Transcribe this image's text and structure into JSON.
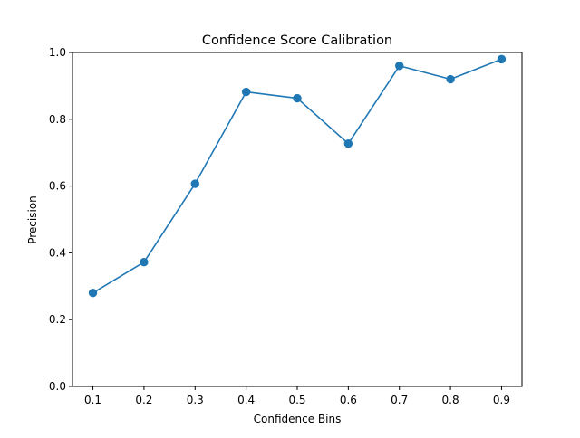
{
  "chart_data": {
    "type": "line",
    "title": "Confidence Score Calibration",
    "xlabel": "Confidence Bins",
    "ylabel": "Precision",
    "x": [
      0.1,
      0.2,
      0.3,
      0.4,
      0.5,
      0.6,
      0.7,
      0.8,
      0.9
    ],
    "series": [
      {
        "values": [
          0.28,
          0.372,
          0.607,
          0.882,
          0.863,
          0.727,
          0.96,
          0.92,
          0.98
        ],
        "color": "#1f77b4",
        "marker": "circle"
      }
    ],
    "xlim": [
      0.06,
      0.94
    ],
    "ylim": [
      0.0,
      1.0
    ],
    "xticks": [
      "0.1",
      "0.2",
      "0.3",
      "0.4",
      "0.5",
      "0.6",
      "0.7",
      "0.8",
      "0.9"
    ],
    "yticks": [
      "0.0",
      "0.2",
      "0.4",
      "0.6",
      "0.8",
      "1.0"
    ],
    "grid": false,
    "legend": "none"
  }
}
